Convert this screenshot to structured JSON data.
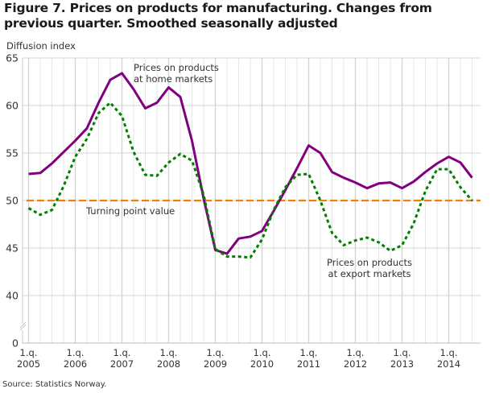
{
  "figure": {
    "title": "Figure 7. Prices on products for manufacturing. Changes from previous quarter. Smoothed seasonally adjusted",
    "source": "Source: Statistics Norway."
  },
  "chart_data": {
    "type": "line",
    "title": "Figure 7. Prices on products for manufacturing. Changes from previous quarter. Smoothed seasonally adjusted",
    "ylabel": "Diffusion index",
    "xlabel": "",
    "ylim": [
      40,
      65
    ],
    "y_axis_break": true,
    "yticks": [
      0,
      40,
      45,
      50,
      55,
      60,
      65
    ],
    "xtick_labels": [
      {
        "line1": "1.q.",
        "line2": "2005",
        "index": 0
      },
      {
        "line1": "1.q.",
        "line2": "2006",
        "index": 4
      },
      {
        "line1": "1.q.",
        "line2": "2007",
        "index": 8
      },
      {
        "line1": "1.q.",
        "line2": "2008",
        "index": 12
      },
      {
        "line1": "1.q.",
        "line2": "2009",
        "index": 16
      },
      {
        "line1": "1.q.",
        "line2": "2010",
        "index": 20
      },
      {
        "line1": "1.q.",
        "line2": "2011",
        "index": 24
      },
      {
        "line1": "1.q.",
        "line2": "2012",
        "index": 28
      },
      {
        "line1": "1.q.",
        "line2": "2013",
        "index": 32
      },
      {
        "line1": "1.q.",
        "line2": "2014",
        "index": 36
      }
    ],
    "x": [
      "2005Q1",
      "2005Q2",
      "2005Q3",
      "2005Q4",
      "2006Q1",
      "2006Q2",
      "2006Q3",
      "2006Q4",
      "2007Q1",
      "2007Q2",
      "2007Q3",
      "2007Q4",
      "2008Q1",
      "2008Q2",
      "2008Q3",
      "2008Q4",
      "2009Q1",
      "2009Q2",
      "2009Q3",
      "2009Q4",
      "2010Q1",
      "2010Q2",
      "2010Q3",
      "2010Q4",
      "2011Q1",
      "2011Q2",
      "2011Q3",
      "2011Q4",
      "2012Q1",
      "2012Q2",
      "2012Q3",
      "2012Q4",
      "2013Q1",
      "2013Q2",
      "2013Q3",
      "2013Q4",
      "2014Q1",
      "2014Q2",
      "2014Q3"
    ],
    "grid": true,
    "series": [
      {
        "name": "Prices on products at home markets",
        "label_line1": "Prices on products",
        "label_line2": "at home markets",
        "color": "#800080",
        "style": "solid",
        "values": [
          52.8,
          52.9,
          53.9,
          55.1,
          56.3,
          57.6,
          60.3,
          62.7,
          63.4,
          61.7,
          59.7,
          60.3,
          61.9,
          60.9,
          56.3,
          50.2,
          44.8,
          44.4,
          46.0,
          46.2,
          46.8,
          48.9,
          51.1,
          53.4,
          55.8,
          55.0,
          53.0,
          52.4,
          51.9,
          51.3,
          51.8,
          51.9,
          51.3,
          52.0,
          53.0,
          53.9,
          54.6,
          54.0,
          52.4
        ]
      },
      {
        "name": "Prices on products at export markets",
        "label_line1": "Prices on products",
        "label_line2": "at export markets",
        "color": "#008000",
        "style": "dotted",
        "values": [
          49.2,
          48.5,
          49.0,
          51.5,
          54.6,
          56.5,
          59.2,
          60.3,
          58.9,
          55.1,
          52.7,
          52.6,
          54.0,
          54.9,
          54.2,
          50.6,
          44.9,
          44.1,
          44.1,
          44.0,
          45.9,
          49.0,
          51.4,
          52.7,
          52.8,
          50.0,
          46.6,
          45.3,
          45.8,
          46.1,
          45.6,
          44.7,
          45.3,
          47.6,
          51.0,
          53.3,
          53.3,
          51.4,
          50.0
        ]
      }
    ],
    "reference_line": {
      "value": 50,
      "label": "Turning point value",
      "color": "#f07f09",
      "style": "dashed"
    }
  }
}
